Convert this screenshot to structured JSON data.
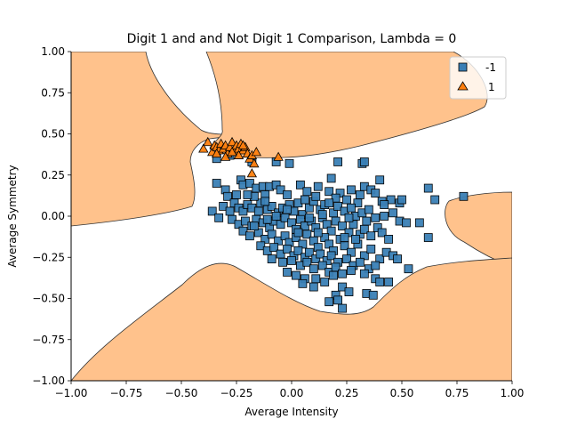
{
  "chart_data": {
    "type": "scatter",
    "title": "Digit 1 and and Not Digit 1 Comparison, Lambda = 0",
    "xlabel": "Average Intensity",
    "ylabel": "Average Symmetry",
    "xlim": [
      -1.0,
      1.0
    ],
    "ylim": [
      -1.0,
      1.0
    ],
    "x_ticks": [
      "−1.00",
      "−0.75",
      "−0.50",
      "−0.25",
      "0.00",
      "0.25",
      "0.50",
      "0.75",
      "1.00"
    ],
    "y_ticks": [
      "1.00",
      "0.75",
      "0.50",
      "0.25",
      "0.00",
      "−0.25",
      "−0.50",
      "−0.75",
      "−1.00"
    ],
    "grid": false,
    "legend_position": "top-right",
    "decision_region_color": "#ffc28c",
    "series": [
      {
        "name": "-1",
        "marker": "square",
        "color": "#3a7fb5",
        "points": [
          [
            -0.34,
            0.35
          ],
          [
            -0.28,
            0.37
          ],
          [
            -0.18,
            0.33
          ],
          [
            -0.07,
            0.33
          ],
          [
            -0.01,
            0.32
          ],
          [
            0.21,
            0.33
          ],
          [
            0.32,
            0.32
          ],
          [
            0.33,
            0.33
          ],
          [
            -0.34,
            0.2
          ],
          [
            -0.3,
            0.16
          ],
          [
            -0.29,
            0.12
          ],
          [
            -0.31,
            0.06
          ],
          [
            -0.28,
            0.03
          ],
          [
            -0.23,
            0.22
          ],
          [
            -0.22,
            0.19
          ],
          [
            -0.19,
            0.2
          ],
          [
            -0.16,
            0.17
          ],
          [
            -0.13,
            0.18
          ],
          [
            -0.12,
            0.13
          ],
          [
            -0.1,
            0.18
          ],
          [
            -0.07,
            0.19
          ],
          [
            -0.05,
            0.16
          ],
          [
            -0.02,
            0.13
          ],
          [
            0.04,
            0.19
          ],
          [
            0.07,
            0.15
          ],
          [
            0.12,
            0.18
          ],
          [
            0.17,
            0.15
          ],
          [
            0.18,
            0.23
          ],
          [
            0.22,
            0.14
          ],
          [
            0.25,
            0.1
          ],
          [
            0.27,
            0.16
          ],
          [
            0.3,
            0.08
          ],
          [
            0.33,
            0.18
          ],
          [
            0.36,
            0.16
          ],
          [
            0.38,
            0.14
          ],
          [
            0.4,
            0.22
          ],
          [
            0.41,
            0.09
          ],
          [
            0.45,
            0.1
          ],
          [
            0.49,
            0.08
          ],
          [
            0.5,
            0.1
          ],
          [
            0.62,
            0.17
          ],
          [
            0.65,
            0.1
          ],
          [
            0.78,
            0.12
          ],
          [
            -0.36,
            0.03
          ],
          [
            -0.33,
            -0.01
          ],
          [
            -0.26,
            0.08
          ],
          [
            -0.24,
            0.05
          ],
          [
            -0.22,
            0.03
          ],
          [
            -0.2,
            0.07
          ],
          [
            -0.18,
            0.05
          ],
          [
            -0.15,
            0.03
          ],
          [
            -0.14,
            0.08
          ],
          [
            -0.11,
            0.04
          ],
          [
            -0.09,
            0.06
          ],
          [
            -0.06,
            0.02
          ],
          [
            -0.04,
            0.05
          ],
          [
            -0.01,
            0.07
          ],
          [
            0.01,
            0.03
          ],
          [
            0.03,
            0.08
          ],
          [
            0.05,
            0.01
          ],
          [
            0.08,
            0.05
          ],
          [
            0.1,
            0.09
          ],
          [
            0.13,
            0.04
          ],
          [
            0.15,
            0.07
          ],
          [
            0.19,
            0.02
          ],
          [
            0.21,
            0.06
          ],
          [
            0.24,
            0.03
          ],
          [
            0.27,
            0.05
          ],
          [
            0.29,
            0.0
          ],
          [
            0.32,
            0.02
          ],
          [
            0.35,
            0.04
          ],
          [
            0.38,
            -0.01
          ],
          [
            0.42,
            0.0
          ],
          [
            0.46,
            0.02
          ],
          [
            0.49,
            -0.03
          ],
          [
            0.52,
            -0.04
          ],
          [
            0.58,
            -0.04
          ],
          [
            0.62,
            -0.13
          ],
          [
            -0.27,
            -0.02
          ],
          [
            -0.24,
            -0.05
          ],
          [
            -0.21,
            -0.03
          ],
          [
            -0.18,
            -0.06
          ],
          [
            -0.16,
            -0.02
          ],
          [
            -0.13,
            -0.04
          ],
          [
            -0.1,
            -0.07
          ],
          [
            -0.08,
            -0.03
          ],
          [
            -0.05,
            -0.05
          ],
          [
            -0.03,
            -0.01
          ],
          [
            0.0,
            -0.04
          ],
          [
            0.02,
            -0.08
          ],
          [
            0.04,
            -0.02
          ],
          [
            0.06,
            -0.06
          ],
          [
            0.09,
            -0.03
          ],
          [
            0.11,
            -0.07
          ],
          [
            0.14,
            -0.01
          ],
          [
            0.16,
            -0.05
          ],
          [
            0.18,
            -0.09
          ],
          [
            0.2,
            -0.03
          ],
          [
            0.23,
            -0.06
          ],
          [
            0.26,
            -0.1
          ],
          [
            0.28,
            -0.05
          ],
          [
            0.31,
            -0.11
          ],
          [
            0.33,
            -0.08
          ],
          [
            0.36,
            -0.12
          ],
          [
            0.39,
            -0.07
          ],
          [
            0.41,
            -0.1
          ],
          [
            0.44,
            -0.14
          ],
          [
            -0.22,
            -0.09
          ],
          [
            -0.19,
            -0.12
          ],
          [
            -0.15,
            -0.1
          ],
          [
            -0.12,
            -0.14
          ],
          [
            -0.09,
            -0.11
          ],
          [
            -0.06,
            -0.15
          ],
          [
            -0.03,
            -0.12
          ],
          [
            -0.01,
            -0.16
          ],
          [
            0.02,
            -0.13
          ],
          [
            0.05,
            -0.17
          ],
          [
            0.07,
            -0.11
          ],
          [
            0.1,
            -0.15
          ],
          [
            0.12,
            -0.19
          ],
          [
            0.15,
            -0.13
          ],
          [
            0.17,
            -0.17
          ],
          [
            0.19,
            -0.21
          ],
          [
            0.22,
            -0.14
          ],
          [
            0.24,
            -0.18
          ],
          [
            0.27,
            -0.22
          ],
          [
            0.3,
            -0.17
          ],
          [
            0.33,
            -0.24
          ],
          [
            0.36,
            -0.2
          ],
          [
            0.4,
            -0.26
          ],
          [
            0.43,
            -0.22
          ],
          [
            0.46,
            -0.24
          ],
          [
            -0.14,
            -0.18
          ],
          [
            -0.11,
            -0.21
          ],
          [
            -0.08,
            -0.19
          ],
          [
            -0.05,
            -0.23
          ],
          [
            -0.02,
            -0.2
          ],
          [
            0.01,
            -0.24
          ],
          [
            0.03,
            -0.21
          ],
          [
            0.06,
            -0.25
          ],
          [
            0.08,
            -0.22
          ],
          [
            0.11,
            -0.26
          ],
          [
            0.13,
            -0.23
          ],
          [
            0.16,
            -0.27
          ],
          [
            0.18,
            -0.24
          ],
          [
            0.21,
            -0.28
          ],
          [
            0.25,
            -0.26
          ],
          [
            0.28,
            -0.3
          ],
          [
            0.31,
            -0.28
          ],
          [
            0.35,
            -0.32
          ],
          [
            0.38,
            -0.3
          ],
          [
            -0.09,
            -0.26
          ],
          [
            -0.04,
            -0.28
          ],
          [
            0.0,
            -0.27
          ],
          [
            0.04,
            -0.3
          ],
          [
            0.07,
            -0.28
          ],
          [
            0.1,
            -0.32
          ],
          [
            0.14,
            -0.3
          ],
          [
            0.17,
            -0.34
          ],
          [
            0.2,
            -0.31
          ],
          [
            0.23,
            -0.35
          ],
          [
            0.27,
            -0.33
          ],
          [
            0.33,
            -0.35
          ],
          [
            0.38,
            -0.38
          ],
          [
            0.4,
            -0.4
          ],
          [
            0.44,
            -0.4
          ],
          [
            0.48,
            -0.26
          ],
          [
            0.53,
            -0.32
          ],
          [
            -0.02,
            -0.34
          ],
          [
            0.02,
            -0.36
          ],
          [
            0.06,
            -0.38
          ],
          [
            0.11,
            -0.38
          ],
          [
            0.15,
            -0.4
          ],
          [
            0.19,
            -0.36
          ],
          [
            0.23,
            -0.43
          ],
          [
            0.26,
            -0.46
          ],
          [
            0.34,
            -0.47
          ],
          [
            0.37,
            -0.48
          ],
          [
            0.05,
            -0.41
          ],
          [
            0.1,
            -0.43
          ],
          [
            0.2,
            -0.48
          ],
          [
            0.21,
            -0.51
          ],
          [
            0.17,
            -0.52
          ],
          [
            0.23,
            -0.56
          ],
          [
            -0.17,
            -0.06
          ],
          [
            -0.07,
            0.0
          ],
          [
            0.08,
            -0.01
          ],
          [
            0.14,
            0.01
          ],
          [
            0.26,
            -0.01
          ],
          [
            0.34,
            -0.03
          ],
          [
            -0.25,
            0.13
          ],
          [
            -0.17,
            0.12
          ],
          [
            -0.02,
            0.04
          ],
          [
            0.11,
            0.12
          ],
          [
            0.2,
            0.11
          ],
          [
            0.31,
            0.13
          ],
          [
            0.42,
            0.07
          ],
          [
            -0.11,
            -0.02
          ],
          [
            0.03,
            -0.1
          ],
          [
            0.12,
            -0.1
          ],
          [
            0.24,
            -0.13
          ],
          [
            0.29,
            -0.14
          ],
          [
            -0.2,
            0.13
          ],
          [
            -0.12,
            0.09
          ],
          [
            0.06,
            0.1
          ],
          [
            0.17,
            0.08
          ]
        ]
      },
      {
        "name": "1",
        "marker": "triangle",
        "color": "#ff7f0e",
        "points": [
          [
            -0.4,
            0.41
          ],
          [
            -0.38,
            0.45
          ],
          [
            -0.36,
            0.39
          ],
          [
            -0.35,
            0.43
          ],
          [
            -0.34,
            0.42
          ],
          [
            -0.33,
            0.4
          ],
          [
            -0.32,
            0.44
          ],
          [
            -0.31,
            0.41
          ],
          [
            -0.3,
            0.43
          ],
          [
            -0.29,
            0.38
          ],
          [
            -0.28,
            0.42
          ],
          [
            -0.27,
            0.45
          ],
          [
            -0.26,
            0.4
          ],
          [
            -0.25,
            0.43
          ],
          [
            -0.24,
            0.41
          ],
          [
            -0.23,
            0.44
          ],
          [
            -0.22,
            0.4
          ],
          [
            -0.21,
            0.42
          ],
          [
            -0.2,
            0.38
          ],
          [
            -0.19,
            0.35
          ],
          [
            -0.18,
            0.37
          ],
          [
            -0.17,
            0.32
          ],
          [
            -0.16,
            0.39
          ],
          [
            -0.24,
            0.37
          ],
          [
            -0.3,
            0.36
          ],
          [
            -0.18,
            0.26
          ],
          [
            -0.06,
            0.36
          ],
          [
            -0.27,
            0.39
          ],
          [
            -0.34,
            0.38
          ],
          [
            -0.22,
            0.43
          ]
        ]
      }
    ]
  }
}
